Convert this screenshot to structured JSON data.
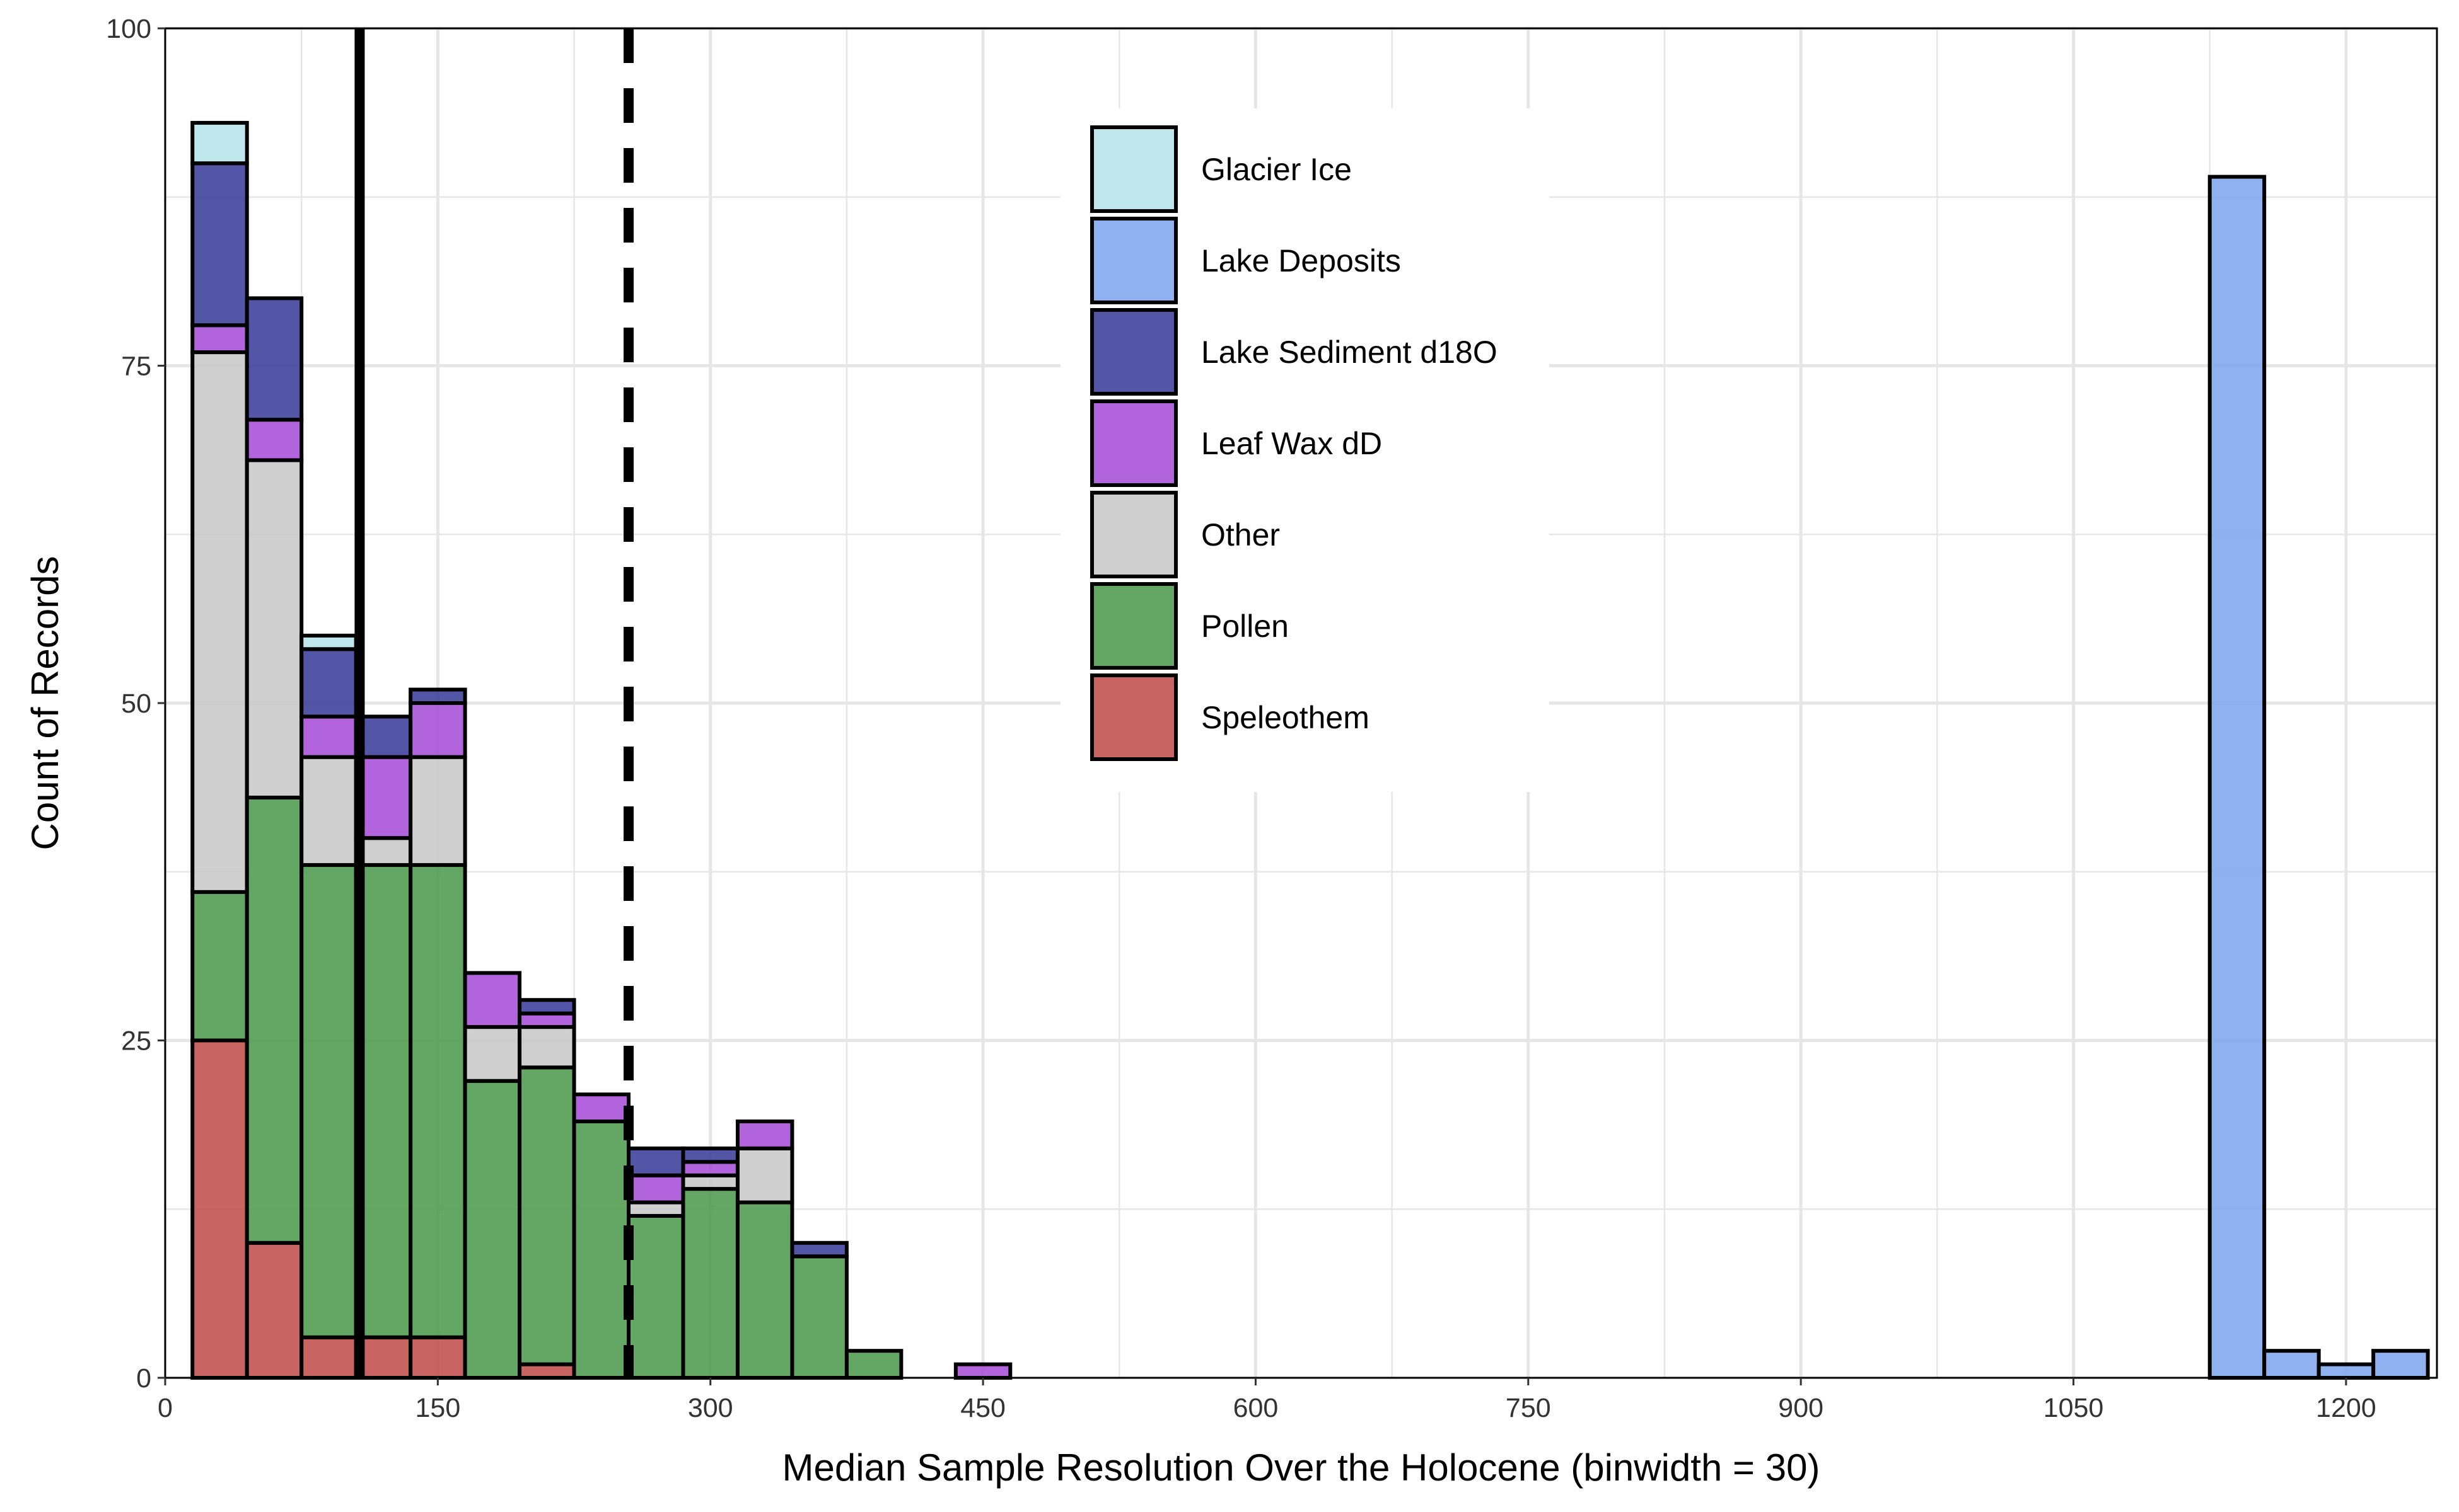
{
  "chart_data": {
    "type": "bar",
    "stacked": true,
    "binwidth": 30,
    "xlabel": "Median Sample Resolution Over the Holocene (binwidth = 30)",
    "ylabel": "Count of Records",
    "xlim": [
      0,
      1250
    ],
    "ylim": [
      0,
      100
    ],
    "x_ticks": [
      0,
      150,
      300,
      450,
      600,
      750,
      900,
      1050,
      1200
    ],
    "y_ticks": [
      0,
      25,
      50,
      75,
      100
    ],
    "grid": true,
    "legend_position": "top-center",
    "bin_centers": [
      30,
      60,
      90,
      120,
      150,
      180,
      210,
      240,
      270,
      300,
      330,
      360,
      390,
      450,
      1140,
      1170,
      1200,
      1230
    ],
    "series": [
      {
        "name": "Speleothem",
        "color": "#C0504D",
        "values": [
          25,
          10,
          3,
          3,
          3,
          0,
          1,
          0,
          0,
          0,
          0,
          0,
          0,
          0,
          0,
          0,
          0,
          0
        ]
      },
      {
        "name": "Pollen",
        "color": "#4E9A4E",
        "values": [
          11,
          33,
          35,
          35,
          35,
          22,
          22,
          19,
          12,
          14,
          13,
          9,
          2,
          0,
          0,
          0,
          0,
          0
        ]
      },
      {
        "name": "Other",
        "color": "#C8C8C8",
        "values": [
          40,
          25,
          8,
          2,
          8,
          4,
          3,
          0,
          1,
          1,
          4,
          0,
          0,
          0,
          0,
          0,
          0,
          0
        ]
      },
      {
        "name": "Leaf Wax dD",
        "color": "#A64FD6",
        "values": [
          2,
          3,
          3,
          6,
          4,
          4,
          1,
          2,
          2,
          1,
          2,
          0,
          0,
          1,
          0,
          0,
          0,
          0
        ]
      },
      {
        "name": "Lake Sediment d18O",
        "color": "#3B3F9A",
        "values": [
          12,
          9,
          5,
          3,
          1,
          0,
          1,
          0,
          2,
          1,
          0,
          1,
          0,
          0,
          0,
          0,
          0,
          0
        ]
      },
      {
        "name": "Lake Deposits",
        "color": "#7FA6EE",
        "values": [
          0,
          0,
          0,
          0,
          0,
          0,
          0,
          0,
          0,
          0,
          0,
          0,
          0,
          0,
          89,
          2,
          1,
          2
        ]
      },
      {
        "name": "Glacier Ice",
        "color": "#B6E4E8",
        "values": [
          3,
          0,
          1,
          0,
          0,
          0,
          0,
          0,
          0,
          0,
          0,
          0,
          0,
          0,
          0,
          0,
          0,
          0
        ]
      }
    ],
    "reference_lines": [
      {
        "x": 107,
        "style": "solid"
      },
      {
        "x": 255,
        "style": "dashed"
      }
    ],
    "legend": [
      {
        "label": "Glacier Ice",
        "color": "#B6E4E8"
      },
      {
        "label": "Lake Deposits",
        "color": "#7FA6EE"
      },
      {
        "label": "Lake Sediment d18O",
        "color": "#3B3F9A"
      },
      {
        "label": "Leaf Wax dD",
        "color": "#A64FD6"
      },
      {
        "label": "Other",
        "color": "#C8C8C8"
      },
      {
        "label": "Pollen",
        "color": "#4E9A4E"
      },
      {
        "label": "Speleothem",
        "color": "#C0504D"
      }
    ]
  }
}
